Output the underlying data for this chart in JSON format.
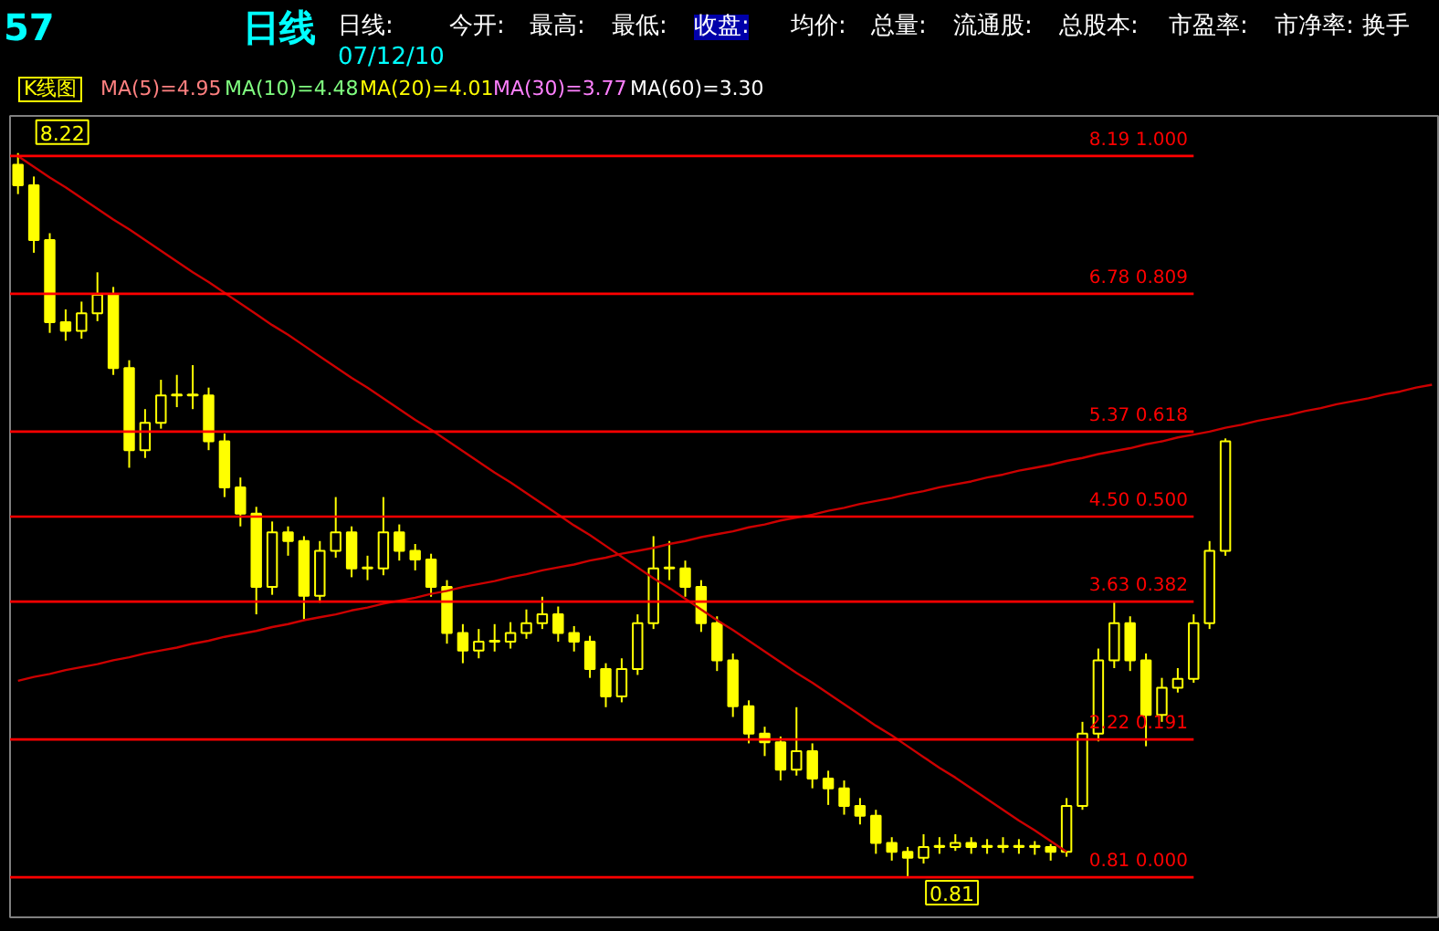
{
  "chart_data": {
    "type": "candlestick",
    "color": "#ffff00",
    "categories": [
      null,
      null,
      null,
      null,
      null,
      null,
      null,
      null,
      null,
      null,
      null,
      null,
      null,
      null,
      null,
      null,
      null,
      null,
      null,
      null,
      null,
      null,
      null,
      null,
      null,
      null,
      null,
      null,
      null,
      null,
      null,
      null,
      null,
      null,
      null,
      null,
      null,
      null,
      null,
      null,
      null,
      null,
      null,
      null,
      null,
      null,
      null,
      null,
      null,
      null,
      null,
      null,
      null,
      null,
      null,
      null,
      null,
      null,
      null,
      null,
      null,
      null,
      null,
      null,
      null,
      null,
      null,
      null,
      null,
      null,
      null,
      null,
      null,
      null,
      null,
      null,
      null,
      null,
      null,
      null,
      null,
      null,
      null,
      null,
      null,
      null,
      null,
      null,
      null,
      null
    ],
    "ohlc": [
      [
        8.1,
        8.22,
        7.8,
        7.89
      ],
      [
        7.89,
        7.98,
        7.2,
        7.33
      ],
      [
        7.33,
        7.4,
        6.38,
        6.49
      ],
      [
        6.49,
        6.62,
        6.3,
        6.4
      ],
      [
        6.4,
        6.7,
        6.32,
        6.58
      ],
      [
        6.58,
        7.0,
        6.5,
        6.77
      ],
      [
        6.77,
        6.85,
        5.95,
        6.02
      ],
      [
        6.02,
        6.1,
        5.0,
        5.18
      ],
      [
        5.18,
        5.6,
        5.1,
        5.46
      ],
      [
        5.46,
        5.9,
        5.4,
        5.74
      ],
      [
        5.74,
        5.95,
        5.62,
        5.74
      ],
      [
        5.74,
        6.05,
        5.6,
        5.74
      ],
      [
        5.74,
        5.82,
        5.18,
        5.27
      ],
      [
        5.27,
        5.35,
        4.7,
        4.8
      ],
      [
        4.8,
        4.9,
        4.4,
        4.53
      ],
      [
        4.53,
        4.6,
        3.5,
        3.78
      ],
      [
        3.78,
        4.45,
        3.7,
        4.34
      ],
      [
        4.34,
        4.4,
        4.1,
        4.25
      ],
      [
        4.25,
        4.3,
        3.45,
        3.69
      ],
      [
        3.69,
        4.25,
        3.62,
        4.15
      ],
      [
        4.15,
        4.7,
        4.08,
        4.34
      ],
      [
        4.34,
        4.4,
        3.88,
        3.97
      ],
      [
        3.97,
        4.1,
        3.85,
        3.97
      ],
      [
        3.97,
        4.7,
        3.9,
        4.34
      ],
      [
        4.34,
        4.42,
        4.05,
        4.15
      ],
      [
        4.15,
        4.22,
        3.95,
        4.06
      ],
      [
        4.06,
        4.12,
        3.68,
        3.78
      ],
      [
        3.78,
        3.85,
        3.2,
        3.31
      ],
      [
        3.31,
        3.4,
        3.0,
        3.13
      ],
      [
        3.13,
        3.35,
        3.05,
        3.22
      ],
      [
        3.22,
        3.4,
        3.12,
        3.22
      ],
      [
        3.22,
        3.42,
        3.15,
        3.31
      ],
      [
        3.31,
        3.55,
        3.25,
        3.41
      ],
      [
        3.41,
        3.68,
        3.35,
        3.5
      ],
      [
        3.5,
        3.58,
        3.22,
        3.31
      ],
      [
        3.31,
        3.38,
        3.12,
        3.22
      ],
      [
        3.22,
        3.28,
        2.85,
        2.94
      ],
      [
        2.94,
        3.0,
        2.55,
        2.66
      ],
      [
        2.66,
        3.05,
        2.6,
        2.94
      ],
      [
        2.94,
        3.5,
        2.88,
        3.41
      ],
      [
        3.41,
        4.3,
        3.35,
        3.97
      ],
      [
        3.97,
        4.25,
        3.85,
        3.97
      ],
      [
        3.97,
        4.05,
        3.68,
        3.78
      ],
      [
        3.78,
        3.85,
        3.32,
        3.41
      ],
      [
        3.41,
        3.48,
        2.92,
        3.03
      ],
      [
        3.03,
        3.1,
        2.45,
        2.56
      ],
      [
        2.56,
        2.62,
        2.18,
        2.28
      ],
      [
        2.28,
        2.35,
        2.05,
        2.19
      ],
      [
        2.19,
        2.25,
        1.8,
        1.91
      ],
      [
        1.91,
        2.55,
        1.85,
        2.1
      ],
      [
        2.1,
        2.18,
        1.72,
        1.82
      ],
      [
        1.82,
        1.9,
        1.55,
        1.72
      ],
      [
        1.72,
        1.8,
        1.45,
        1.54
      ],
      [
        1.54,
        1.62,
        1.35,
        1.44
      ],
      [
        1.44,
        1.5,
        1.05,
        1.16
      ],
      [
        1.16,
        1.22,
        0.98,
        1.07
      ],
      [
        1.07,
        1.12,
        0.81,
        1.01
      ],
      [
        1.01,
        1.25,
        0.95,
        1.12
      ],
      [
        1.12,
        1.22,
        1.05,
        1.12
      ],
      [
        1.12,
        1.25,
        1.08,
        1.16
      ],
      [
        1.16,
        1.22,
        1.05,
        1.12
      ],
      [
        1.12,
        1.2,
        1.05,
        1.12
      ],
      [
        1.12,
        1.22,
        1.06,
        1.12
      ],
      [
        1.12,
        1.2,
        1.05,
        1.12
      ],
      [
        1.12,
        1.18,
        1.04,
        1.12
      ],
      [
        1.12,
        1.15,
        0.98,
        1.07
      ],
      [
        1.07,
        1.62,
        1.02,
        1.54
      ],
      [
        1.54,
        2.4,
        1.5,
        2.28
      ],
      [
        2.28,
        3.15,
        2.2,
        3.03
      ],
      [
        3.03,
        3.63,
        2.95,
        3.41
      ],
      [
        3.41,
        3.48,
        2.92,
        3.03
      ],
      [
        3.03,
        3.1,
        2.15,
        2.47
      ],
      [
        2.47,
        2.85,
        2.4,
        2.75
      ],
      [
        2.75,
        2.95,
        2.7,
        2.84
      ],
      [
        2.84,
        3.5,
        2.8,
        3.41
      ],
      [
        3.41,
        4.25,
        3.35,
        4.15
      ],
      [
        4.15,
        5.3,
        4.1,
        5.27
      ],
      null,
      null,
      null,
      null,
      null,
      null,
      null,
      null,
      null,
      null,
      null,
      null,
      null
    ],
    "series": [
      {
        "type": "line",
        "color": "#cc0000",
        "values": [
          8.19,
          8.08,
          7.97,
          7.87,
          7.76,
          7.65,
          7.54,
          7.44,
          7.33,
          7.22,
          7.11,
          7.0,
          6.9,
          6.79,
          6.68,
          6.57,
          6.46,
          6.36,
          6.25,
          6.14,
          6.03,
          5.92,
          5.82,
          5.71,
          5.6,
          5.49,
          5.39,
          5.28,
          5.17,
          5.06,
          4.95,
          4.85,
          4.74,
          4.63,
          4.52,
          4.41,
          4.31,
          4.2,
          4.09,
          3.98,
          3.87,
          3.77,
          3.66,
          3.55,
          3.44,
          3.34,
          3.23,
          3.12,
          3.01,
          2.9,
          2.8,
          2.69,
          2.58,
          2.47,
          2.36,
          2.26,
          2.15,
          2.04,
          1.93,
          1.83,
          1.72,
          1.61,
          1.5,
          1.39,
          1.29,
          1.18,
          1.07,
          null,
          null,
          null,
          null,
          null,
          null,
          null,
          null,
          null,
          null,
          null,
          null,
          null,
          null,
          null,
          null,
          null,
          null,
          null,
          null,
          null,
          null,
          null
        ]
      },
      {
        "type": "line",
        "color": "#cc0000",
        "values": [
          2.82,
          2.86,
          2.89,
          2.93,
          2.96,
          2.99,
          3.03,
          3.06,
          3.1,
          3.13,
          3.16,
          3.2,
          3.23,
          3.27,
          3.3,
          3.33,
          3.37,
          3.4,
          3.44,
          3.47,
          3.5,
          3.54,
          3.57,
          3.61,
          3.64,
          3.67,
          3.71,
          3.74,
          3.78,
          3.81,
          3.84,
          3.88,
          3.91,
          3.95,
          3.98,
          4.01,
          4.05,
          4.08,
          4.12,
          4.15,
          4.18,
          4.22,
          4.25,
          4.29,
          4.32,
          4.35,
          4.39,
          4.42,
          4.46,
          4.49,
          4.52,
          4.56,
          4.59,
          4.63,
          4.66,
          4.69,
          4.73,
          4.76,
          4.8,
          4.83,
          4.86,
          4.9,
          4.93,
          4.97,
          5.0,
          5.03,
          5.07,
          5.1,
          5.14,
          5.17,
          5.2,
          5.24,
          5.27,
          5.31,
          5.34,
          5.37,
          5.41,
          5.44,
          5.48,
          5.51,
          5.54,
          5.58,
          5.61,
          5.65,
          5.68,
          5.71,
          5.75,
          5.78,
          5.82,
          5.85
        ]
      }
    ],
    "ylim": [
      0.4,
      8.6
    ],
    "tick_labels": false,
    "grid": false,
    "ref_lines": [
      {
        "axis": "y",
        "value": 8.19,
        "label": "8.19  1.000",
        "color": "#ff0000"
      },
      {
        "axis": "y",
        "value": 6.78,
        "label": "6.78  0.809",
        "color": "#ff0000"
      },
      {
        "axis": "y",
        "value": 5.37,
        "label": "5.37  0.618",
        "color": "#ff0000"
      },
      {
        "axis": "y",
        "value": 4.5,
        "label": "4.50  0.500",
        "color": "#ff0000"
      },
      {
        "axis": "y",
        "value": 3.63,
        "label": "3.63  0.382",
        "color": "#ff0000"
      },
      {
        "axis": "y",
        "value": 2.22,
        "label": "2.22  0.191",
        "color": "#ff0000"
      },
      {
        "axis": "y",
        "value": 0.81,
        "label": "0.81  0.000",
        "color": "#ff0000"
      }
    ],
    "annotations": [
      "57",
      "日线",
      "日线:",
      "07/12/10",
      "今开:",
      "最高:",
      "最低:",
      "收盘:",
      "均价:",
      "总量:",
      "流通股:",
      "总股本:",
      "市盈率:",
      "市净率:",
      "换手",
      "K线图",
      "MA(5)=4.95",
      "MA(10)=4.48",
      "MA(20)=4.01",
      "MA(30)=3.77",
      "MA(60)=3.30",
      {
        "text": "8.22",
        "y": 8.22
      },
      {
        "text": "0.81",
        "y": 0.81
      }
    ]
  }
}
